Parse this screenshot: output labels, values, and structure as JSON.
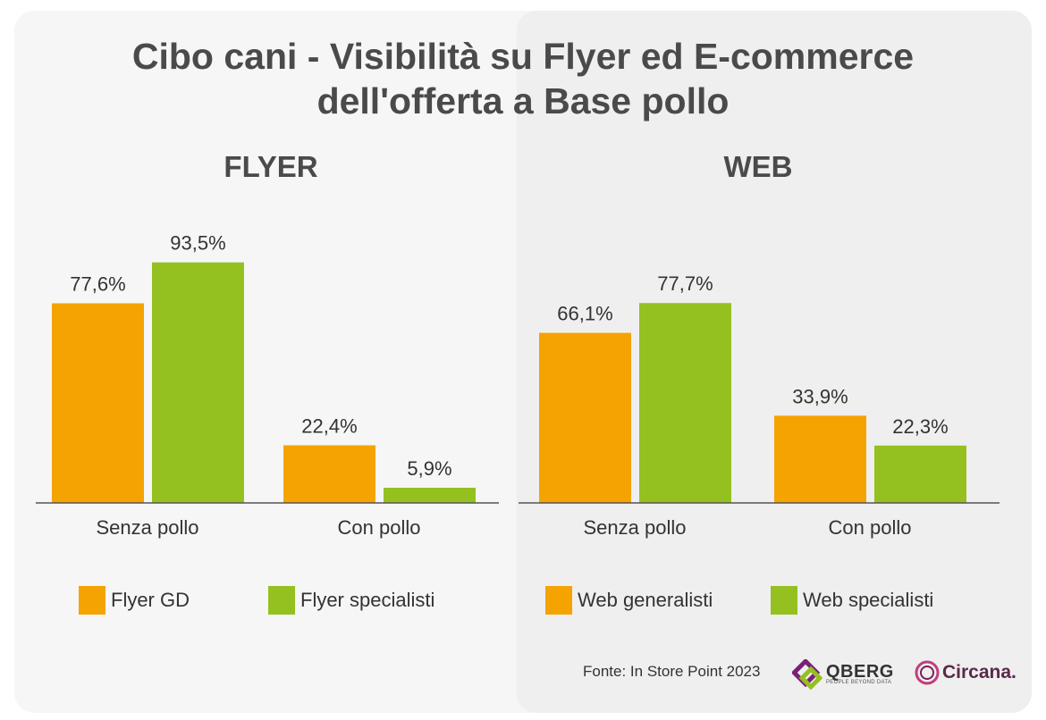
{
  "title_line1": "Cibo cani - Visibilità su Flyer ed E-commerce",
  "title_line2": "dell'offerta a Base pollo",
  "colors": {
    "orange": "#f5a300",
    "green": "#94c11f",
    "baseline": "#555555"
  },
  "chart_data": [
    {
      "type": "bar",
      "title": "FLYER",
      "categories": [
        "Senza pollo",
        "Con pollo"
      ],
      "series": [
        {
          "name": "Flyer GD",
          "values": [
            77.6,
            22.4
          ],
          "labels": [
            "77,6%",
            "22,4%"
          ]
        },
        {
          "name": "Flyer specialisti",
          "values": [
            93.5,
            5.9
          ],
          "labels": [
            "93,5%",
            "5,9%"
          ]
        }
      ],
      "ylim": [
        0,
        100
      ],
      "grid": false,
      "legend": "bottom"
    },
    {
      "type": "bar",
      "title": "WEB",
      "categories": [
        "Senza pollo",
        "Con pollo"
      ],
      "series": [
        {
          "name": "Web generalisti",
          "values": [
            66.1,
            33.9
          ],
          "labels": [
            "66,1%",
            "33,9%"
          ]
        },
        {
          "name": "Web specialisti",
          "values": [
            77.7,
            22.3
          ],
          "labels": [
            "77,7%",
            "22,3%"
          ]
        }
      ],
      "ylim": [
        0,
        100
      ],
      "grid": false,
      "legend": "bottom"
    }
  ],
  "footer": {
    "source": "Fonte: In Store Point 2023",
    "qberg_name": "QBERG",
    "qberg_tagline": "PEOPLE BEYOND DATA",
    "circana_name": "Circana."
  }
}
